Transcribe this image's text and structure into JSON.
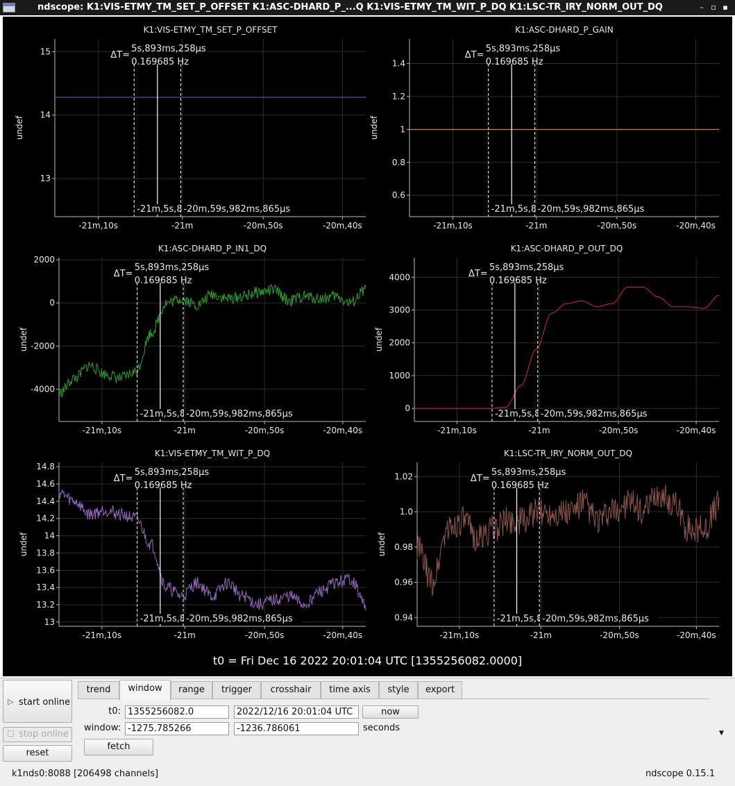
{
  "window": {
    "title": "ndscope: K1:VIS-ETMY_TM_SET_P_OFFSET K1:ASC-DHARD_P_...Q K1:VIS-ETMY_TM_WIT_P_DQ K1:LSC-TR_IRY_NORM_OUT_DQ",
    "controls": [
      "–",
      "▫",
      "▪"
    ]
  },
  "crosshair": {
    "delta_label": "ΔT=",
    "delta_time": "5s,893ms,258µs",
    "freq": "0.169685 Hz",
    "left_time": "-21m,5s,8",
    "right_time": "-20m,59s,982ms,865µs"
  },
  "xticks": [
    "-21m,10s",
    "-21m",
    "-20m,50s",
    "-20m,40s"
  ],
  "ylabel": "undef",
  "colors": {
    "K1:VIS-ETMY_TM_SET_P_OFFSET": "#4f6bd8",
    "K1:ASC-DHARD_P_GAIN": "#ff8c2a",
    "K1:ASC-DHARD_P_IN1_DQ": "#2ca02c",
    "K1:ASC-DHARD_P_OUT_DQ": "#d62728",
    "K1:VIS-ETMY_TM_WIT_P_DQ": "#9467bd",
    "K1:LSC-TR_IRY_NORM_OUT_DQ": "#8c564b"
  },
  "plots": [
    {
      "title": "K1:VIS-ETMY_TM_SET_P_OFFSET",
      "yticks": [
        "15",
        "14",
        "13"
      ]
    },
    {
      "title": "K1:ASC-DHARD_P_GAIN",
      "yticks": [
        "1.4",
        "1.2",
        "1",
        "0.8",
        "0.6"
      ]
    },
    {
      "title": "K1:ASC-DHARD_P_IN1_DQ",
      "yticks": [
        "2000",
        "0",
        "-2000",
        "-4000"
      ]
    },
    {
      "title": "K1:ASC-DHARD_P_OUT_DQ",
      "yticks": [
        "4000",
        "3000",
        "2000",
        "1000",
        "0"
      ]
    },
    {
      "title": "K1:VIS-ETMY_TM_WIT_P_DQ",
      "yticks": [
        "14.8",
        "14.6",
        "14.4",
        "14.2",
        "14",
        "13.8",
        "13.6",
        "13.4",
        "13.2",
        "13"
      ]
    },
    {
      "title": "K1:LSC-TR_IRY_NORM_OUT_DQ",
      "yticks": [
        "1.02",
        "1.0",
        "0.98",
        "0.96",
        "0.94"
      ]
    }
  ],
  "chart_data": [
    {
      "type": "line",
      "title": "K1:VIS-ETMY_TM_SET_P_OFFSET",
      "ylabel": "undef",
      "ylim": [
        12.4,
        15.2
      ],
      "x_ticks": [
        "-21m,10s",
        "-21m",
        "-20m,50s",
        "-20m,40s"
      ],
      "series": [
        {
          "values": [
            14.28,
            14.28
          ]
        }
      ]
    },
    {
      "type": "line",
      "title": "K1:ASC-DHARD_P_GAIN",
      "ylabel": "undef",
      "ylim": [
        0.47,
        1.55
      ],
      "x_ticks": [
        "-21m,10s",
        "-21m",
        "-20m,50s",
        "-20m,40s"
      ],
      "series": [
        {
          "values": [
            1,
            1
          ]
        }
      ]
    },
    {
      "type": "line",
      "title": "K1:ASC-DHARD_P_IN1_DQ",
      "ylabel": "undef",
      "ylim": [
        -5500,
        2100
      ],
      "x_ticks": [
        "-21m,10s",
        "-21m",
        "-20m,50s",
        "-20m,40s"
      ],
      "series": [
        {
          "values": [
            -4200,
            -3500,
            -2900,
            -3300,
            -3500,
            -3200,
            -1400,
            0,
            200,
            -100,
            400,
            200,
            300,
            500,
            600,
            100,
            300,
            200,
            300,
            0,
            600
          ]
        }
      ]
    },
    {
      "type": "line",
      "title": "K1:ASC-DHARD_P_OUT_DQ",
      "ylabel": "undef",
      "ylim": [
        -400,
        4600
      ],
      "x_ticks": [
        "-21m,10s",
        "-21m",
        "-20m,50s",
        "-20m,40s"
      ],
      "series": [
        {
          "values": [
            0,
            0,
            0,
            0,
            0,
            0,
            30,
            700,
            1800,
            2900,
            3200,
            3280,
            3100,
            3200,
            3700,
            3700,
            3400,
            3100,
            3100,
            3050,
            3450
          ]
        }
      ]
    },
    {
      "type": "line",
      "title": "K1:VIS-ETMY_TM_WIT_P_DQ",
      "ylabel": "undef",
      "ylim": [
        12.95,
        14.85
      ],
      "x_ticks": [
        "-21m,10s",
        "-21m",
        "-20m,50s",
        "-20m,40s"
      ],
      "series": [
        {
          "values": [
            14.5,
            14.4,
            14.25,
            14.3,
            14.25,
            14.2,
            13.9,
            13.4,
            13.3,
            13.45,
            13.3,
            13.45,
            13.3,
            13.2,
            13.25,
            13.3,
            13.2,
            13.35,
            13.45,
            13.5,
            13.2
          ]
        }
      ]
    },
    {
      "type": "line",
      "title": "K1:LSC-TR_IRY_NORM_OUT_DQ",
      "ylabel": "undef",
      "ylim": [
        0.935,
        1.028
      ],
      "x_ticks": [
        "-21m,10s",
        "-21m",
        "-20m,50s",
        "-20m,40s"
      ],
      "series": [
        {
          "values": [
            0.98,
            0.96,
            0.99,
            0.995,
            0.985,
            0.99,
            0.995,
            0.995,
            1.0,
            1.0,
            1.0,
            1.005,
            0.995,
            1.0,
            1.005,
            1.0,
            1.01,
            1.005,
            0.99,
            0.99,
            1.005
          ]
        }
      ]
    }
  ],
  "t0_line": "t0 = Fri Dec 16 2022 20:01:04 UTC [1355256082.0000]",
  "controls": {
    "start_label": "start online",
    "stop_label": "stop online",
    "reset_label": "reset",
    "tabs": [
      "trend",
      "window",
      "range",
      "trigger",
      "crosshair",
      "time axis",
      "style",
      "export"
    ],
    "active_tab": "window",
    "t0_label": "t0:",
    "t0_gps": "1355256082.0",
    "t0_utc": "2022/12/16 20:01:04 UTC",
    "now_label": "now",
    "window_label": "window:",
    "window_start": "-1275.785266",
    "window_end": "-1236.786061",
    "seconds_label": "seconds",
    "fetch_label": "fetch"
  },
  "status": {
    "server": "k1nds0:8088",
    "channels": "[206498 channels]",
    "version": "ndscope 0.15.1"
  }
}
